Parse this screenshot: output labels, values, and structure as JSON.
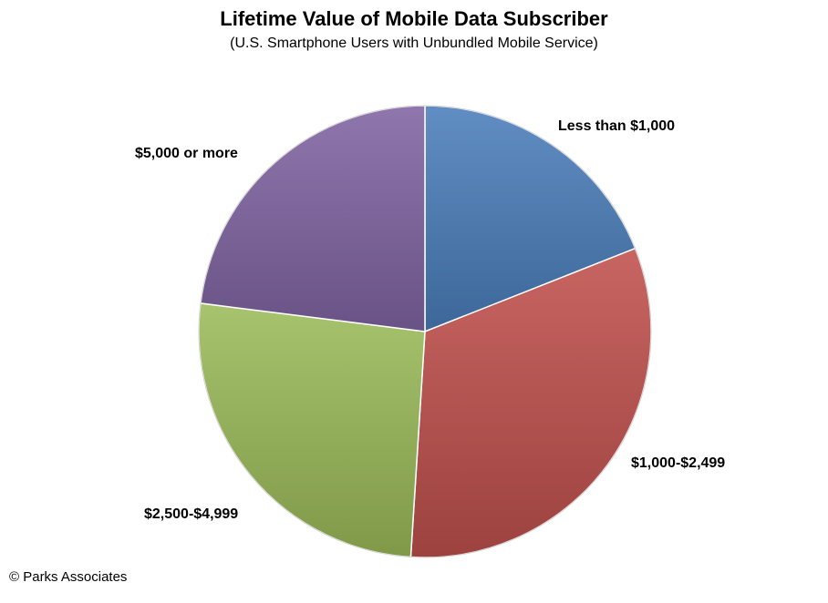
{
  "chart_data": {
    "type": "pie",
    "title": "Lifetime Value of Mobile Data Subscriber",
    "subtitle": "(U.S. Smartphone Users with Unbundled Mobile Service)",
    "categories": [
      "Less than $1,000",
      "$1,000-$2,499",
      "$2,500-$4,999",
      "$5,000 or more"
    ],
    "values": [
      19,
      32,
      26,
      23
    ],
    "colors": [
      "#4A7EBB",
      "#C0504D",
      "#9BBB59",
      "#8064A2"
    ],
    "legend": "none"
  },
  "footer": {
    "copyright": "© Parks Associates"
  }
}
